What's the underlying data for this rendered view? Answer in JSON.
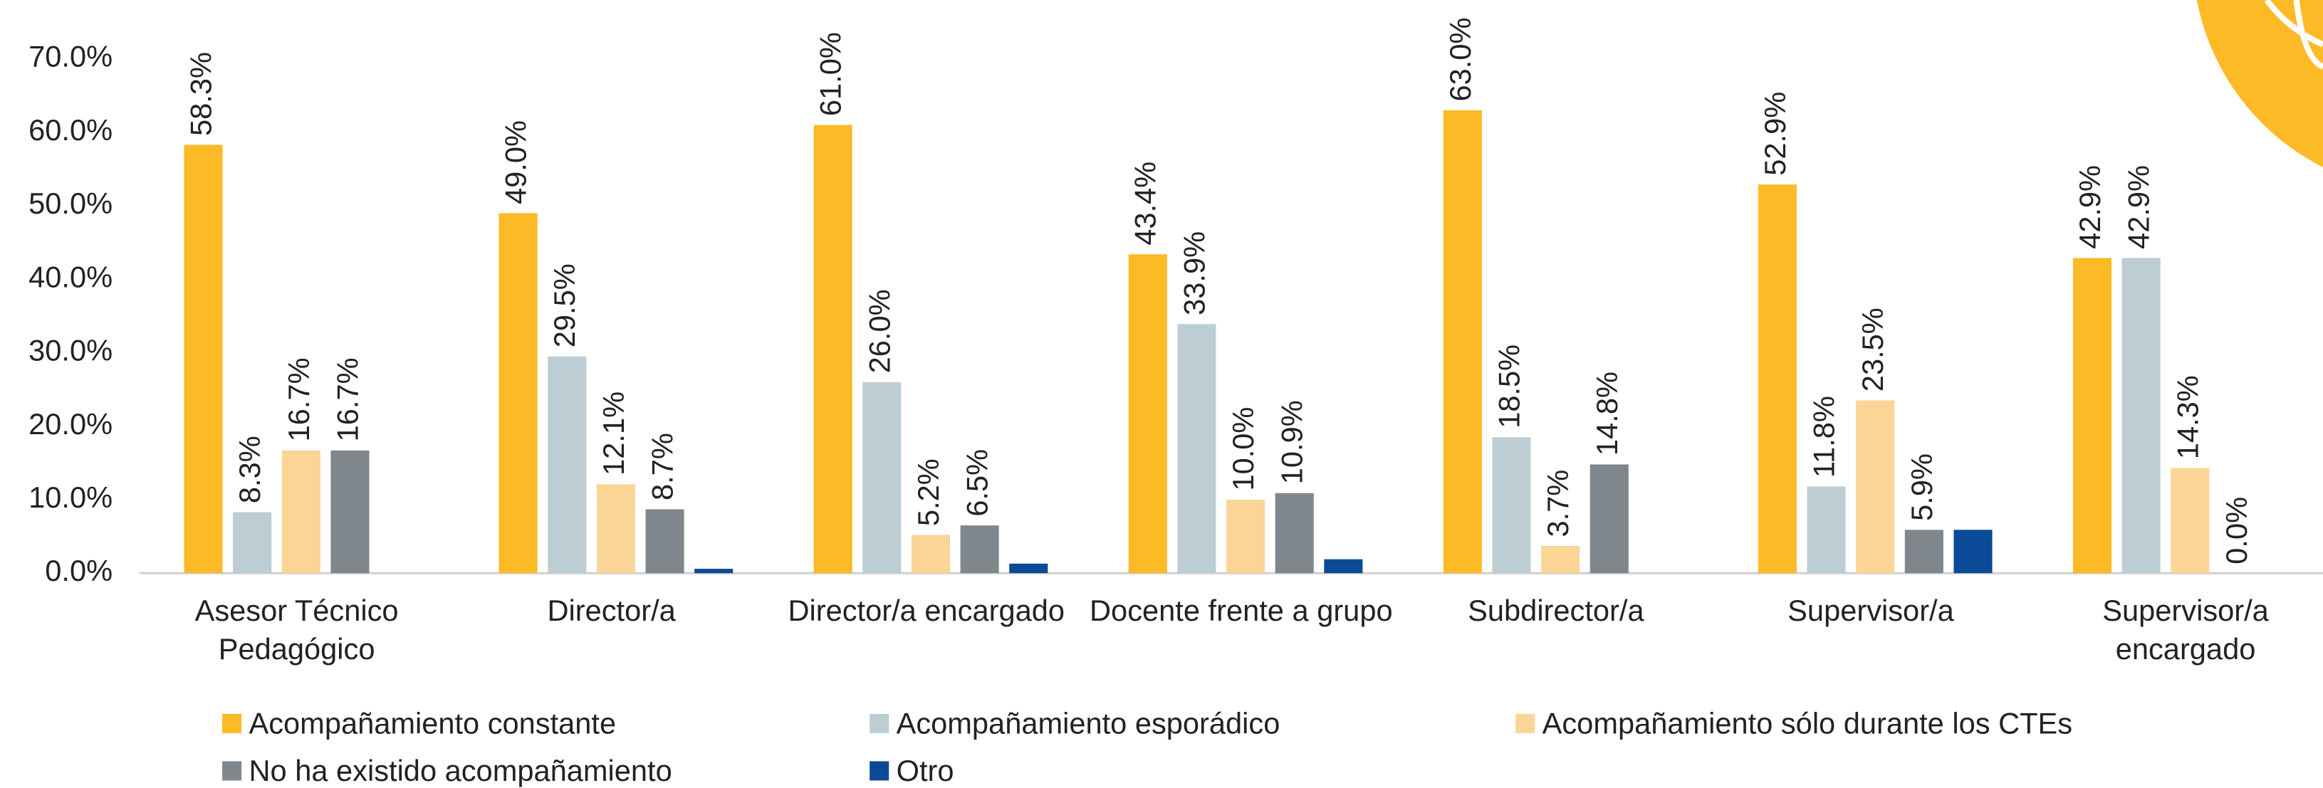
{
  "chart_data": {
    "type": "bar",
    "categories": [
      "Asesor Técnico Pedagógico",
      "Director/a",
      "Director/a encargado",
      "Docente frente a grupo",
      "Subdirector/a",
      "Supervisor/a",
      "Supervisor/a encargado"
    ],
    "series": [
      {
        "name": "Acompañamiento constante",
        "color": "#FBBA26",
        "values": [
          58.3,
          49.0,
          61.0,
          43.4,
          63.0,
          52.9,
          42.9
        ],
        "value_labels": [
          "58.3%",
          "49.0%",
          "61.0%",
          "43.4%",
          "63.0%",
          "52.9%",
          "42.9%"
        ]
      },
      {
        "name": "Acompañamiento esporádico",
        "color": "#BCCDD3",
        "values": [
          8.3,
          29.5,
          26.0,
          33.9,
          18.5,
          11.8,
          42.9
        ],
        "value_labels": [
          "8.3%",
          "29.5%",
          "26.0%",
          "33.9%",
          "18.5%",
          "11.8%",
          "42.9%"
        ]
      },
      {
        "name": "Acompañamiento sólo durante los CTEs",
        "color": "#FBD596",
        "values": [
          16.7,
          12.1,
          5.2,
          10.0,
          3.7,
          23.5,
          14.3
        ],
        "value_labels": [
          "16.7%",
          "12.1%",
          "5.2%",
          "10.0%",
          "3.7%",
          "23.5%",
          "14.3%"
        ]
      },
      {
        "name": "No ha existido acompañamiento",
        "color": "#7F878C",
        "values": [
          16.7,
          8.7,
          6.5,
          10.9,
          14.8,
          5.9,
          0.0
        ],
        "value_labels": [
          "16.7%",
          "8.7%",
          "6.5%",
          "10.9%",
          "14.8%",
          "5.9%",
          "0.0%"
        ]
      },
      {
        "name": "Otro",
        "color": "#0B4A97",
        "values": [
          null,
          0.6,
          1.3,
          1.9,
          null,
          5.9,
          null
        ]
      }
    ],
    "ylim": [
      0,
      78
    ],
    "yticks": [
      {
        "value": 0,
        "label": "0.0%"
      },
      {
        "value": 10,
        "label": "10.0%"
      },
      {
        "value": 20,
        "label": "20.0%"
      },
      {
        "value": 30,
        "label": "30.0%"
      },
      {
        "value": 40,
        "label": "40.0%"
      },
      {
        "value": 50,
        "label": "50.0%"
      },
      {
        "value": 60,
        "label": "60.0%"
      },
      {
        "value": 70,
        "label": "70.0%"
      }
    ]
  }
}
